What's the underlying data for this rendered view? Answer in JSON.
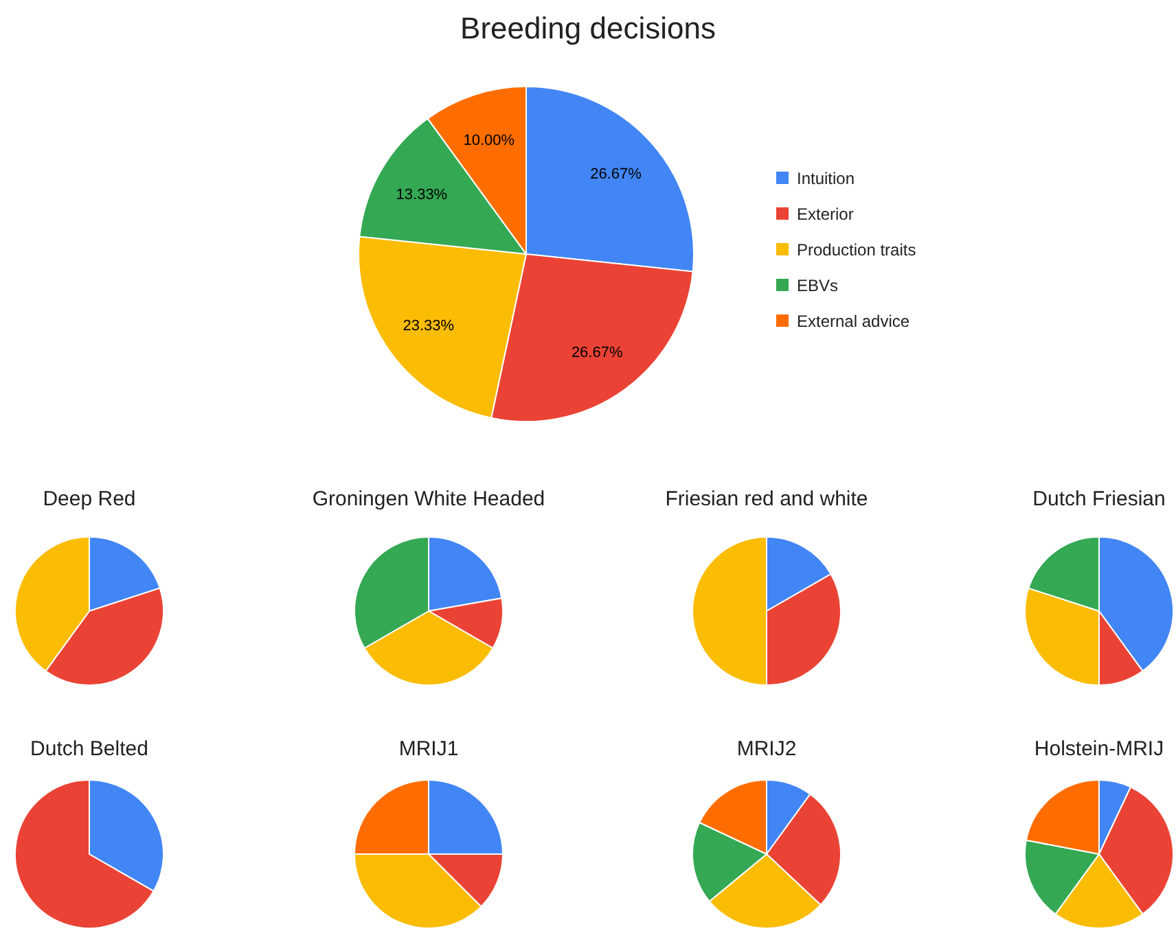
{
  "chart_data": [
    {
      "type": "pie",
      "title": "Breeding decisions",
      "categories": [
        "Intuition",
        "Exterior",
        "Production traits",
        "EBVs",
        "External advice"
      ],
      "values": [
        26.67,
        26.67,
        23.33,
        13.33,
        10
      ],
      "value_labels": [
        "26.67%",
        "26.67%",
        "23.33%",
        "13.33%",
        "10.00%"
      ],
      "colors": [
        "#4285f4",
        "#ea4335",
        "#fbbc04",
        "#34a853",
        "#ff6d01"
      ],
      "legend": "right"
    },
    {
      "type": "pie",
      "title": "Deep Red",
      "categories": [
        null,
        null,
        null
      ],
      "values": [
        20,
        40,
        40
      ],
      "colors": [
        "#4285f4",
        "#ea4335",
        "#fbbc04"
      ]
    },
    {
      "type": "pie",
      "title": "Groningen White Headed",
      "categories": [
        null,
        null,
        null,
        null
      ],
      "values": [
        22.22,
        11.11,
        33.33,
        33.33
      ],
      "colors": [
        "#4285f4",
        "#ea4335",
        "#fbbc04",
        "#34a853"
      ]
    },
    {
      "type": "pie",
      "title": "Friesian red and white",
      "categories": [
        null,
        null,
        null
      ],
      "values": [
        16.67,
        33.33,
        50
      ],
      "colors": [
        "#4285f4",
        "#ea4335",
        "#fbbc04"
      ]
    },
    {
      "type": "pie",
      "title": "Dutch Friesian",
      "categories": [
        null,
        null,
        null,
        null
      ],
      "values": [
        40,
        10,
        30,
        20
      ],
      "colors": [
        "#4285f4",
        "#ea4335",
        "#fbbc04",
        "#34a853"
      ]
    },
    {
      "type": "pie",
      "title": "Dutch Belted",
      "categories": [
        null,
        null
      ],
      "values": [
        33.33,
        66.67
      ],
      "colors": [
        "#4285f4",
        "#ea4335"
      ]
    },
    {
      "type": "pie",
      "title": "MRIJ1",
      "categories": [
        null,
        null,
        null,
        null
      ],
      "values": [
        25,
        12.5,
        37.5,
        25
      ],
      "colors": [
        "#4285f4",
        "#ea4335",
        "#fbbc04",
        "#ff6d01"
      ]
    },
    {
      "type": "pie",
      "title": "MRIJ2",
      "categories": [
        null,
        null,
        null,
        null,
        null
      ],
      "values": [
        10,
        27,
        27,
        18,
        18
      ],
      "colors": [
        "#4285f4",
        "#ea4335",
        "#fbbc04",
        "#34a853",
        "#ff6d01"
      ]
    },
    {
      "type": "pie",
      "title": "Holstein-MRIJ",
      "categories": [
        null,
        null,
        null,
        null,
        null
      ],
      "values": [
        7,
        33,
        20,
        18,
        22
      ],
      "colors": [
        "#4285f4",
        "#ea4335",
        "#fbbc04",
        "#34a853",
        "#ff6d01"
      ]
    }
  ]
}
